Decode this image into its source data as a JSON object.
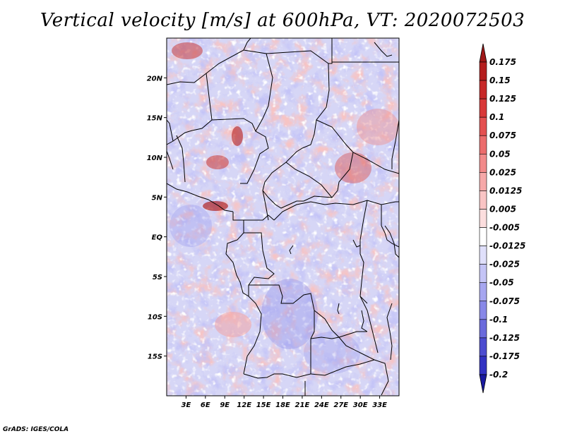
{
  "title": "Vertical velocity [m/s] at 600hPa, VT: 2020072503",
  "credit": "GrADS: IGES/COLA",
  "map": {
    "lon_range": [
      0,
      36
    ],
    "lat_range": [
      -20,
      25
    ],
    "lat_ticks": [
      {
        "value": 20,
        "label": "20N"
      },
      {
        "value": 15,
        "label": "15N"
      },
      {
        "value": 10,
        "label": "10N"
      },
      {
        "value": 5,
        "label": "5N"
      },
      {
        "value": 0,
        "label": "EQ"
      },
      {
        "value": -5,
        "label": "5S"
      },
      {
        "value": -10,
        "label": "10S"
      },
      {
        "value": -15,
        "label": "15S"
      }
    ],
    "lon_ticks": [
      {
        "value": 3,
        "label": "3E"
      },
      {
        "value": 6,
        "label": "6E"
      },
      {
        "value": 9,
        "label": "9E"
      },
      {
        "value": 12,
        "label": "12E"
      },
      {
        "value": 15,
        "label": "15E"
      },
      {
        "value": 18,
        "label": "18E"
      },
      {
        "value": 21,
        "label": "21E"
      },
      {
        "value": 24,
        "label": "24E"
      },
      {
        "value": 27,
        "label": "27E"
      },
      {
        "value": 30,
        "label": "30E"
      },
      {
        "value": 33,
        "label": "33E"
      }
    ]
  },
  "colorbar": {
    "levels": [
      {
        "label": "0.175",
        "color": "#b41e1e"
      },
      {
        "label": "0.15",
        "color": "#c72828"
      },
      {
        "label": "0.125",
        "color": "#d83838"
      },
      {
        "label": "0.1",
        "color": "#e45050"
      },
      {
        "label": "0.075",
        "color": "#ec6c6c"
      },
      {
        "label": "0.05",
        "color": "#f28a8a"
      },
      {
        "label": "0.025",
        "color": "#f6a8a8"
      },
      {
        "label": "0.0125",
        "color": "#f9c4c4"
      },
      {
        "label": "0.005",
        "color": "#fcdede"
      },
      {
        "label": "-0.005",
        "color": "#ffffff"
      },
      {
        "label": "-0.0125",
        "color": "#e0e0fb"
      },
      {
        "label": "-0.025",
        "color": "#c4c4f6"
      },
      {
        "label": "-0.05",
        "color": "#a6a6f0"
      },
      {
        "label": "-0.075",
        "color": "#8888e8"
      },
      {
        "label": "-0.1",
        "color": "#6a6adc"
      },
      {
        "label": "-0.125",
        "color": "#4c4cd0"
      },
      {
        "label": "-0.175",
        "color": "#3232c2"
      },
      {
        "label": "-0.2",
        "color": "#1e1eb0"
      }
    ],
    "top_color": "#a01818",
    "bottom_color": "#1a1aa0"
  }
}
